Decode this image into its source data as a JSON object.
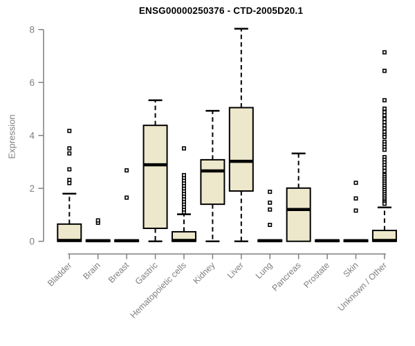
{
  "chart_data": {
    "type": "boxplot",
    "title": "ENSG00000250376 - CTD-2005D20.1",
    "ylabel": "Expression",
    "xlabel": "",
    "ylim": [
      0,
      8
    ],
    "yticks": [
      0,
      2,
      4,
      6,
      8
    ],
    "grid": false,
    "legend": "none",
    "box_fill_color": "#EDE7CB",
    "box_stroke_color": "#000000",
    "axis_color": "#7f7f7f",
    "categories": [
      "Bladder",
      "Brain",
      "Breast",
      "Gastric",
      "Hematopoietic cells",
      "Kidney",
      "Liver",
      "Lung",
      "Pancreas",
      "Prostate",
      "Skin",
      "Unknown / Other"
    ],
    "boxes": [
      {
        "category": "Bladder",
        "low": 0,
        "q1": 0,
        "median": 0.03,
        "q3": 0.65,
        "high": 1.8,
        "outliers": [
          2.2,
          2.32,
          2.72,
          3.32,
          3.51,
          4.17
        ]
      },
      {
        "category": "Brain",
        "low": 0,
        "q1": 0,
        "median": 0.02,
        "q3": 0.05,
        "high": 0.05,
        "outliers": [
          0.7,
          0.79
        ]
      },
      {
        "category": "Breast",
        "low": 0,
        "q1": 0,
        "median": 0.02,
        "q3": 0.05,
        "high": 0.05,
        "outliers": [
          1.65,
          2.68
        ]
      },
      {
        "category": "Gastric",
        "low": 0,
        "q1": 0.49,
        "median": 2.89,
        "q3": 4.38,
        "high": 5.33,
        "outliers": []
      },
      {
        "category": "Hematopoietic cells",
        "low": 0,
        "q1": 0,
        "median": 0.03,
        "q3": 0.36,
        "high": 1.02,
        "outliers": [
          1.1,
          1.2,
          1.3,
          1.4,
          1.5,
          1.6,
          1.7,
          1.8,
          1.9,
          2.0,
          2.1,
          2.2,
          2.3,
          2.4,
          2.5,
          3.51
        ]
      },
      {
        "category": "Kidney",
        "low": 0,
        "q1": 1.4,
        "median": 2.66,
        "q3": 3.08,
        "high": 4.93,
        "outliers": []
      },
      {
        "category": "Liver",
        "low": 0,
        "q1": 1.9,
        "median": 3.02,
        "q3": 5.05,
        "high": 8.03,
        "outliers": []
      },
      {
        "category": "Lung",
        "low": 0,
        "q1": 0,
        "median": 0.02,
        "q3": 0.05,
        "high": 0.05,
        "outliers": [
          0.62,
          1.2,
          1.46,
          1.87
        ]
      },
      {
        "category": "Pancreas",
        "low": 0,
        "q1": 0,
        "median": 1.2,
        "q3": 2.01,
        "high": 3.32,
        "outliers": []
      },
      {
        "category": "Prostate",
        "low": 0,
        "q1": 0,
        "median": 0.02,
        "q3": 0.05,
        "high": 0.05,
        "outliers": []
      },
      {
        "category": "Skin",
        "low": 0,
        "q1": 0,
        "median": 0.02,
        "q3": 0.05,
        "high": 0.05,
        "outliers": [
          1.16,
          1.62,
          2.21
        ]
      },
      {
        "category": "Unknown / Other",
        "low": 0,
        "q1": 0,
        "median": 0.03,
        "q3": 0.41,
        "high": 1.28,
        "outliers": [
          7.14,
          6.44,
          5.33,
          5.01,
          4.88,
          4.76,
          4.62,
          4.5,
          4.38,
          4.26,
          4.14,
          4.02,
          3.94,
          3.76,
          3.66,
          3.56,
          3.46,
          3.18,
          3.08,
          2.98,
          2.88,
          2.78,
          2.66,
          2.5,
          2.42,
          2.34,
          2.26,
          2.18,
          2.1,
          2.02,
          1.94,
          1.86,
          1.78,
          1.7,
          1.62,
          1.54,
          1.48,
          1.42
        ]
      }
    ]
  }
}
